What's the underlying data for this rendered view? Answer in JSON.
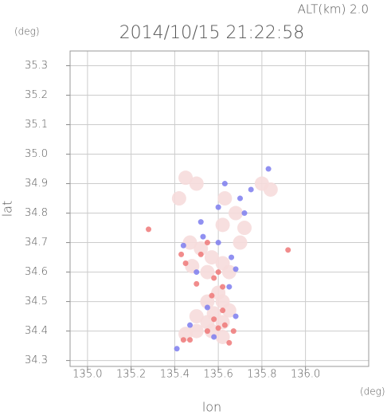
{
  "chart_data": {
    "type": "scatter",
    "title": "2014/10/15 21:22:58",
    "annotation": "ALT(km) 2.0",
    "y_unit": "(deg)",
    "x_unit": "(deg)",
    "x_label": "lon",
    "y_label": "lat",
    "xlim": [
      134.92,
      136.29
    ],
    "ylim": [
      34.28,
      35.35
    ],
    "xticks": [
      {
        "value": 135.0,
        "label": "135.0"
      },
      135.2,
      135.4,
      135.6,
      135.8,
      {
        "value": 136.0,
        "label": "136.0"
      }
    ],
    "yticks": [
      34.3,
      34.4,
      34.5,
      34.6,
      34.7,
      34.8,
      34.9,
      {
        "value": 35.0,
        "label": "35.0"
      },
      35.1,
      35.2,
      35.3
    ],
    "grid": true,
    "series": [
      {
        "color": "#f6dcdc",
        "x": [
          135.45,
          135.5,
          135.42,
          135.63,
          135.68,
          135.72,
          135.62,
          135.47,
          135.52,
          135.57,
          135.62,
          135.48,
          135.55,
          135.65,
          135.6,
          135.55,
          135.62,
          135.65,
          135.58,
          135.55,
          135.62,
          135.5,
          135.57,
          135.45,
          135.62,
          135.8,
          135.84,
          135.7,
          135.5
        ],
        "y": [
          34.92,
          34.9,
          34.85,
          34.85,
          34.8,
          34.75,
          34.76,
          34.7,
          34.68,
          34.65,
          34.63,
          34.62,
          34.6,
          34.6,
          34.53,
          34.5,
          34.5,
          34.47,
          34.46,
          34.43,
          34.43,
          34.4,
          34.4,
          34.39,
          34.38,
          34.9,
          34.88,
          34.7,
          34.45
        ]
      },
      {
        "color": "#ee7878",
        "x": [
          135.28,
          135.43,
          135.45,
          135.58,
          135.6,
          135.62,
          135.58,
          135.6,
          135.63,
          135.55,
          135.47,
          135.44,
          135.65,
          135.52,
          135.55,
          135.62,
          135.92,
          135.5,
          135.57,
          135.67
        ],
        "y": [
          34.745,
          34.66,
          34.63,
          34.58,
          34.6,
          34.47,
          34.44,
          34.41,
          34.42,
          34.4,
          34.37,
          34.37,
          34.36,
          34.66,
          34.7,
          34.55,
          34.675,
          34.56,
          34.52,
          34.4
        ]
      },
      {
        "color": "#7c7cee",
        "x": [
          135.41,
          135.83,
          135.7,
          135.63,
          135.53,
          135.66,
          135.6,
          135.5,
          135.65,
          135.55,
          135.68,
          135.58,
          135.47,
          135.72,
          135.52,
          135.75,
          135.6,
          135.68,
          135.44
        ],
        "y": [
          34.34,
          34.95,
          34.85,
          34.9,
          34.72,
          34.65,
          34.7,
          34.6,
          34.55,
          34.48,
          34.45,
          34.38,
          34.42,
          34.8,
          34.77,
          34.88,
          34.82,
          34.61,
          34.69
        ]
      }
    ]
  }
}
